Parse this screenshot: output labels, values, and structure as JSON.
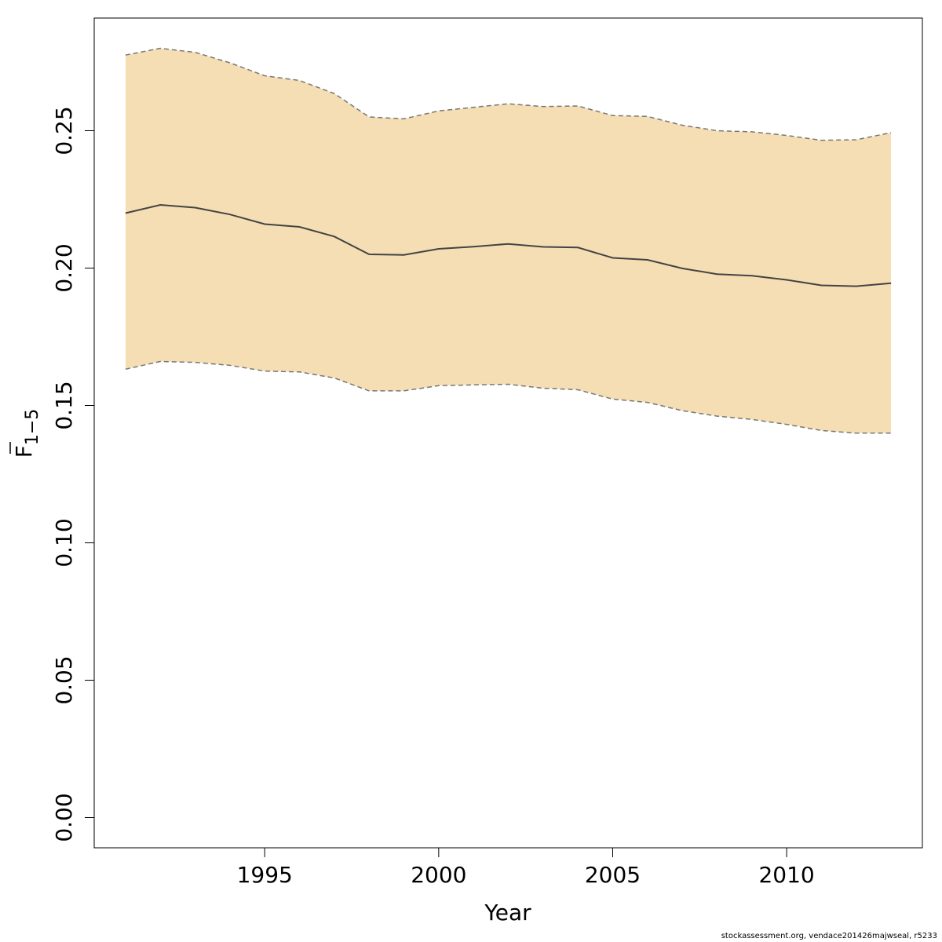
{
  "chart_data": {
    "type": "area",
    "title": "",
    "xlabel": "Year",
    "ylabel_main": "F",
    "ylabel_sub": "1−5",
    "x": [
      1991,
      1992,
      1993,
      1994,
      1995,
      1996,
      1997,
      1998,
      1999,
      2000,
      2001,
      2002,
      2003,
      2004,
      2005,
      2006,
      2007,
      2008,
      2009,
      2010,
      2011,
      2012,
      2013
    ],
    "series": [
      {
        "role": "estimate",
        "values": [
          0.22,
          0.223,
          0.222,
          0.2195,
          0.216,
          0.215,
          0.2115,
          0.205,
          0.2048,
          0.207,
          0.2078,
          0.2088,
          0.2077,
          0.2075,
          0.2037,
          0.203,
          0.1999,
          0.1978,
          0.1972,
          0.1957,
          0.1937,
          0.1934,
          0.1945
        ]
      },
      {
        "role": "upper",
        "values": [
          0.2775,
          0.28,
          0.2785,
          0.2747,
          0.27,
          0.2683,
          0.2635,
          0.255,
          0.2543,
          0.2572,
          0.2585,
          0.2598,
          0.2588,
          0.259,
          0.2555,
          0.2552,
          0.252,
          0.25,
          0.2496,
          0.2483,
          0.2465,
          0.2467,
          0.2493
        ]
      },
      {
        "role": "lower",
        "values": [
          0.1632,
          0.166,
          0.1657,
          0.1646,
          0.1625,
          0.1622,
          0.16,
          0.1553,
          0.1553,
          0.1572,
          0.1575,
          0.1577,
          0.1563,
          0.1557,
          0.1523,
          0.1511,
          0.1481,
          0.1461,
          0.1449,
          0.1431,
          0.1409,
          0.1399,
          0.1399
        ]
      }
    ],
    "xticks": [
      1995,
      2000,
      2005,
      2010
    ],
    "yticks": [
      "0.00",
      "0.05",
      "0.10",
      "0.15",
      "0.20",
      "0.25"
    ],
    "xlim": [
      1990.1,
      2013.9
    ],
    "ylim": [
      -0.011,
      0.291
    ],
    "band_color": "#F5DEB3",
    "line_color": "#444444",
    "bound_color": "#777777",
    "grid": false,
    "legend": "none"
  },
  "credit": "stockassessment.org, vendace201426majwseal, r5233"
}
